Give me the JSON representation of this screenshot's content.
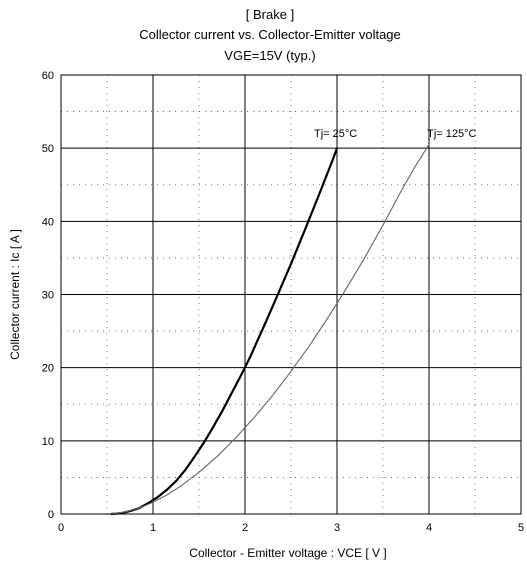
{
  "chart_data": {
    "type": "line",
    "title_lines": [
      "[ Brake ]",
      "Collector current  vs.  Collector-Emitter voltage",
      "VGE=15V  (typ.)"
    ],
    "xlabel": "Collector - Emitter voltage  :  VCE  [ V ]",
    "ylabel": "Collector current  :  Ic  [ A ]",
    "xlim": [
      0,
      5
    ],
    "ylim": [
      0,
      60
    ],
    "x_ticks": [
      0,
      1,
      2,
      3,
      4,
      5
    ],
    "y_ticks": [
      0,
      10,
      20,
      30,
      40,
      50,
      60
    ],
    "x_tick_labels": [
      "0",
      "1",
      "2",
      "3",
      "4",
      "5"
    ],
    "y_tick_labels": [
      "0",
      "10",
      "20",
      "30",
      "40",
      "50",
      "60"
    ],
    "x_minor_step": 0.5,
    "y_minor_step": 5,
    "grid": true,
    "series": [
      {
        "name": "Tj= 25°C",
        "color": "#000000",
        "style": "solid-bold",
        "x": [
          0.55,
          0.65,
          0.75,
          0.85,
          0.95,
          1.05,
          1.15,
          1.25,
          1.35,
          1.45,
          1.55,
          1.65,
          1.75,
          1.85,
          1.95,
          2.05,
          2.2,
          2.35,
          2.5,
          2.65,
          2.8,
          2.95,
          3.0
        ],
        "y": [
          0.0,
          0.1,
          0.4,
          0.8,
          1.5,
          2.3,
          3.3,
          4.5,
          6.0,
          7.8,
          9.7,
          11.8,
          14.0,
          16.4,
          18.8,
          21.3,
          25.5,
          29.8,
          34.2,
          38.8,
          43.5,
          48.3,
          50.0
        ]
      },
      {
        "name": "Tj= 125°C",
        "color": "#666666",
        "style": "solid-thin",
        "x": [
          0.55,
          0.7,
          0.85,
          1.0,
          1.15,
          1.3,
          1.5,
          1.7,
          1.9,
          2.1,
          2.3,
          2.5,
          2.7,
          2.9,
          3.1,
          3.3,
          3.5,
          3.7,
          3.85,
          4.0
        ],
        "y": [
          0.0,
          0.3,
          0.8,
          1.6,
          2.6,
          3.8,
          5.7,
          7.9,
          10.4,
          13.2,
          16.2,
          19.5,
          23.0,
          26.8,
          30.8,
          35.0,
          39.5,
          44.2,
          47.5,
          50.5
        ]
      }
    ],
    "annotations": [
      {
        "text": "Tj= 25°C",
        "x": 2.75,
        "y": 51.5
      },
      {
        "text": "Tj= 125°C",
        "x": 3.98,
        "y": 51.5
      }
    ]
  }
}
